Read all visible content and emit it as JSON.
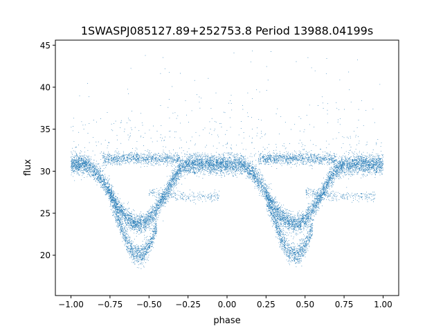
{
  "chart_data": {
    "type": "scatter",
    "title": "1SWASPJ085127.89+252753.8 Period 13988.04199s",
    "xlabel": "phase",
    "ylabel": "flux",
    "xlim": [
      -1.1,
      1.1
    ],
    "ylim": [
      15.2,
      45.6
    ],
    "xticks": [
      -1.0,
      -0.75,
      -0.5,
      -0.25,
      0.0,
      0.25,
      0.5,
      0.75,
      1.0
    ],
    "xtick_labels": [
      "−1.00",
      "−0.75",
      "−0.50",
      "−0.25",
      "0.00",
      "0.25",
      "0.50",
      "0.75",
      "1.00"
    ],
    "yticks": [
      20,
      25,
      30,
      35,
      40,
      45
    ],
    "ytick_labels": [
      "20",
      "25",
      "30",
      "35",
      "40",
      "45"
    ],
    "grid": false,
    "legend": "none",
    "marker_color": "#1f77b4",
    "series": [
      {
        "description_points": [
          {
            "phase": -1.0,
            "flux": 30.8
          },
          {
            "phase": -0.9,
            "flux": 30.8
          },
          {
            "phase": -0.82,
            "flux": 29.5
          },
          {
            "phase": -0.75,
            "flux": 27.5
          },
          {
            "phase": -0.7,
            "flux": 25.8
          },
          {
            "phase": -0.65,
            "flux": 24.6
          },
          {
            "phase": -0.6,
            "flux": 23.9
          },
          {
            "phase": -0.55,
            "flux": 23.7
          },
          {
            "phase": -0.5,
            "flux": 24.2
          },
          {
            "phase": -0.45,
            "flux": 25.5
          },
          {
            "phase": -0.4,
            "flux": 27.0
          },
          {
            "phase": -0.35,
            "flux": 28.8
          },
          {
            "phase": -0.3,
            "flux": 30.2
          },
          {
            "phase": -0.25,
            "flux": 30.8
          },
          {
            "phase": 0.0,
            "flux": 30.8
          },
          {
            "phase": 0.1,
            "flux": 30.8
          },
          {
            "phase": 0.18,
            "flux": 29.5
          },
          {
            "phase": 0.25,
            "flux": 27.5
          },
          {
            "phase": 0.3,
            "flux": 25.8
          },
          {
            "phase": 0.35,
            "flux": 24.6
          },
          {
            "phase": 0.4,
            "flux": 23.9
          },
          {
            "phase": 0.45,
            "flux": 23.7
          },
          {
            "phase": 0.5,
            "flux": 24.2
          },
          {
            "phase": 0.55,
            "flux": 25.5
          },
          {
            "phase": 0.6,
            "flux": 27.0
          },
          {
            "phase": 0.65,
            "flux": 28.8
          },
          {
            "phase": 0.7,
            "flux": 30.2
          },
          {
            "phase": 0.75,
            "flux": 30.8
          },
          {
            "phase": 1.0,
            "flux": 30.8
          }
        ],
        "deep_branch_points": [
          {
            "phase": -0.75,
            "flux": 27.0
          },
          {
            "phase": -0.7,
            "flux": 24.5
          },
          {
            "phase": -0.65,
            "flux": 22.0
          },
          {
            "phase": -0.6,
            "flux": 20.3
          },
          {
            "phase": -0.55,
            "flux": 20.0
          },
          {
            "phase": -0.5,
            "flux": 21.0
          },
          {
            "phase": -0.45,
            "flux": 23.5
          },
          {
            "phase": 0.25,
            "flux": 27.0
          },
          {
            "phase": 0.3,
            "flux": 24.5
          },
          {
            "phase": 0.35,
            "flux": 22.0
          },
          {
            "phase": 0.4,
            "flux": 20.3
          },
          {
            "phase": 0.45,
            "flux": 20.0
          },
          {
            "phase": 0.5,
            "flux": 21.0
          },
          {
            "phase": 0.55,
            "flux": 23.5
          }
        ],
        "upper_band_points": [
          {
            "phase": -0.8,
            "flux": 31.5
          },
          {
            "phase": -0.55,
            "flux": 31.5
          },
          {
            "phase": -0.3,
            "flux": 31.4
          },
          {
            "phase": 0.2,
            "flux": 31.5
          },
          {
            "phase": 0.45,
            "flux": 31.5
          },
          {
            "phase": 0.7,
            "flux": 31.4
          }
        ],
        "lower_band_points": [
          {
            "phase": -0.5,
            "flux": 27.5
          },
          {
            "phase": -0.3,
            "flux": 27.0
          },
          {
            "phase": -0.05,
            "flux": 27.0
          },
          {
            "phase": 0.5,
            "flux": 27.5
          },
          {
            "phase": 0.7,
            "flux": 27.0
          },
          {
            "phase": 0.95,
            "flux": 27.0
          }
        ]
      }
    ]
  }
}
